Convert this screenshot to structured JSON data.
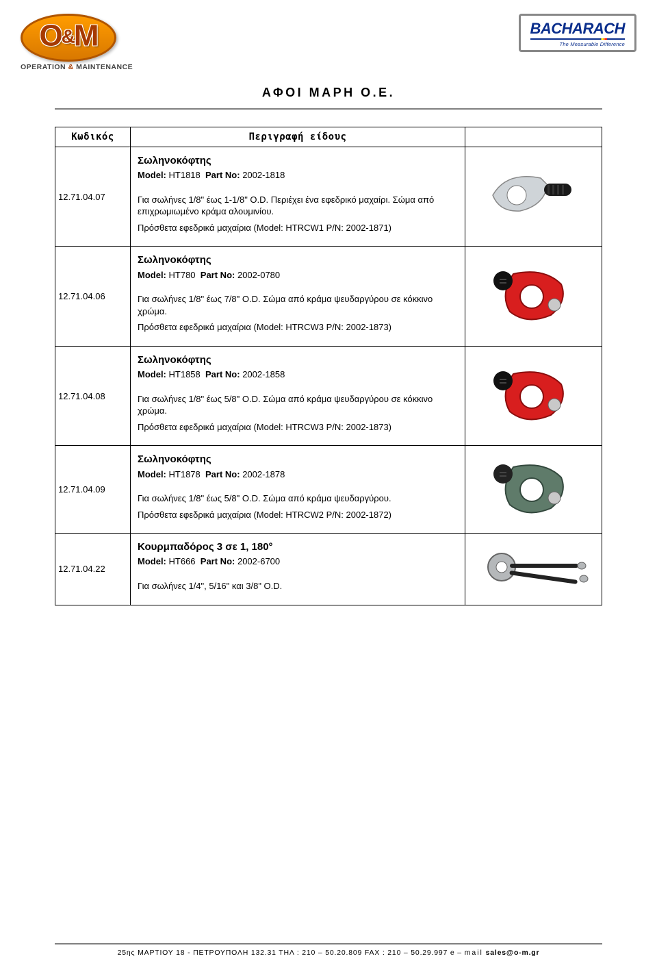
{
  "header": {
    "company_title": "ΑΦΟΙ ΜΑΡΗ Ο.Ε.",
    "left_logo": {
      "main": "O&M",
      "sub1": "OPERATION",
      "amp_small": "&",
      "sub2": "MAINTENANCE"
    },
    "right_logo": {
      "name": "BACHARACH",
      "tagline": "The Measurable Difference"
    }
  },
  "table": {
    "headers": {
      "code": "Κωδικός",
      "desc": "Περιγραφή είδους"
    },
    "rows": [
      {
        "code": "12.71.04.07",
        "title": "Σωληνοκόφτης",
        "model_label": "Model:",
        "model_value": "HT1818",
        "part_label": "Part No:",
        "part_value": "2002-1818",
        "body1": "Για σωλήνες 1/8\" έως 1-1/8\" O.D. Περιέχει ένα εφεδρικό μαχαίρι. Σώμα από επιχρωμιωμένο κράμα αλουμινίου.",
        "body2": "Πρόσθετα εφεδρικά μαχαίρια (Model: HTRCW1 P/N: 2002-1871)",
        "img_colors": {
          "body": "#cfd4d8",
          "knob": "#1a1a1a",
          "accent": "#444"
        }
      },
      {
        "code": "12.71.04.06",
        "title": "Σωληνοκόφτης",
        "model_label": "Model:",
        "model_value": "HT780",
        "part_label": "Part No:",
        "part_value": "2002-0780",
        "body1": "Για σωλήνες 1/8\" έως 7/8\" O.D. Σώμα από κράμα ψευδαργύρου σε κόκκινο χρώμα.",
        "body2": "Πρόσθετα εφεδρικά μαχαίρια  (Model: HTRCW3 P/N: 2002-1873)",
        "img_colors": {
          "body": "#d81e1e",
          "knob": "#111",
          "accent": "#8a0d0d"
        }
      },
      {
        "code": "12.71.04.08",
        "title": "Σωληνοκόφτης",
        "model_label": "Model:",
        "model_value": "HT1858",
        "part_label": "Part No:",
        "part_value": "2002-1858",
        "body1": "Για σωλήνες 1/8\" έως 5/8\" O.D. Σώμα από κράμα ψευδαργύρου σε κόκκινο χρώμα.",
        "body2": "Πρόσθετα εφεδρικά μαχαίρια  (Model: HTRCW3 P/N: 2002-1873)",
        "img_colors": {
          "body": "#d81e1e",
          "knob": "#111",
          "accent": "#8a0d0d"
        }
      },
      {
        "code": "12.71.04.09",
        "title": "Σωληνοκόφτης",
        "model_label": "Model:",
        "model_value": "HT1878",
        "part_label": "Part No:",
        "part_value": "2002-1878",
        "body1": "Για σωλήνες 1/8\" έως 5/8\" O.D. Σώμα από κράμα ψευδαργύρου.",
        "body2": "Πρόσθετα εφεδρικά μαχαίρια (Model: HTRCW2 P/N: 2002-1872)",
        "img_colors": {
          "body": "#5f7b6a",
          "knob": "#222",
          "accent": "#33483d"
        }
      },
      {
        "code": "12.71.04.22",
        "title": "Κουρμπαδόρος 3 σε 1, 180°",
        "model_label": "Model:",
        "model_value": "HT666",
        "part_label": "Part No:",
        "part_value": "2002-6700",
        "body1": "Για σωλήνες 1/4\", 5/16\" και 3/8\" O.D.",
        "body2": "",
        "img_colors": {
          "body": "#b5b8ba",
          "knob": "#222",
          "accent": "#666"
        }
      }
    ]
  },
  "footer": {
    "text_1": "25ης ΜΑΡΤΙΟΥ 18 - ΠΕΤΡΟΥΠΟΛΗ 132.31 ΤΗΛ : 210 – 50.20.809  FAX : 210 – 50.29.997  e – ",
    "mail_label": "mail",
    "email": "sales@o-m.gr"
  }
}
